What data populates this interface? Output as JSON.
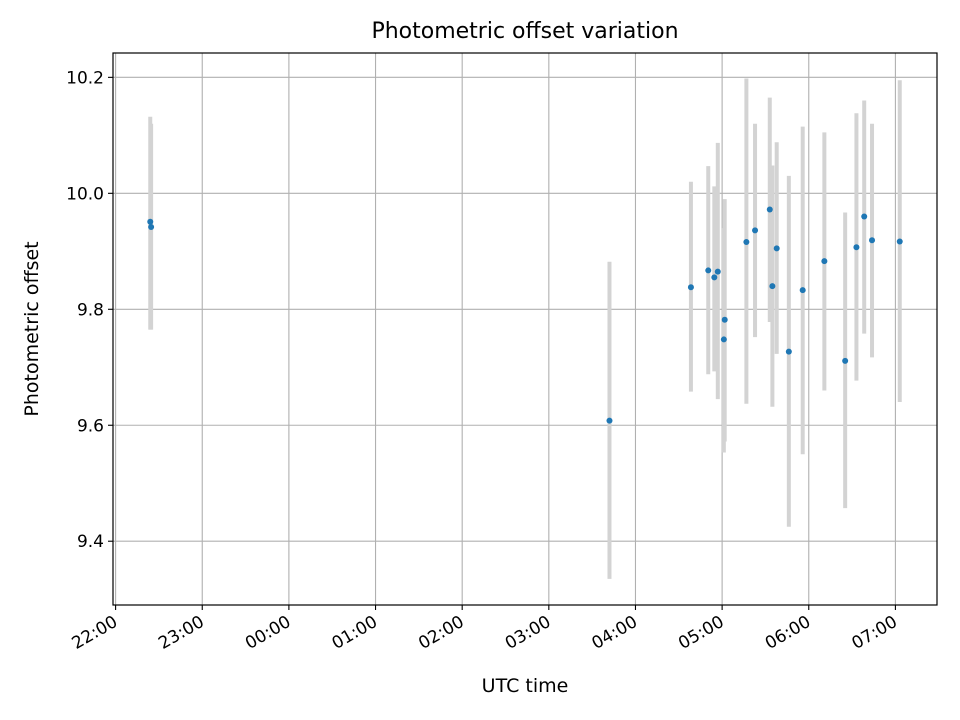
{
  "chart_data": {
    "type": "scatter",
    "title": "Photometric offset variation",
    "xlabel": "UTC time",
    "ylabel": "Photometric offset",
    "x_unit": "hours since 22:00 UTC",
    "xlim": [
      -0.03,
      9.48
    ],
    "ylim": [
      9.29,
      10.242
    ],
    "grid": true,
    "x_ticks": [
      {
        "value": 0,
        "label": "22:00"
      },
      {
        "value": 1,
        "label": "23:00"
      },
      {
        "value": 2,
        "label": "00:00"
      },
      {
        "value": 3,
        "label": "01:00"
      },
      {
        "value": 4,
        "label": "02:00"
      },
      {
        "value": 5,
        "label": "03:00"
      },
      {
        "value": 6,
        "label": "04:00"
      },
      {
        "value": 7,
        "label": "05:00"
      },
      {
        "value": 8,
        "label": "06:00"
      },
      {
        "value": 9,
        "label": "07:00"
      }
    ],
    "y_ticks": [
      {
        "value": 9.4,
        "label": "9.4"
      },
      {
        "value": 9.6,
        "label": "9.6"
      },
      {
        "value": 9.8,
        "label": "9.8"
      },
      {
        "value": 10.0,
        "label": "10.0"
      },
      {
        "value": 10.2,
        "label": "10.2"
      }
    ],
    "colors": {
      "point": "#1f77b4",
      "errorbar": "#d3d3d3",
      "grid": "#b0b0b0",
      "frame": "#000000"
    },
    "points": [
      {
        "x": 0.4,
        "y": 9.951,
        "err_low": 9.765,
        "err_high": 10.132
      },
      {
        "x": 0.41,
        "y": 9.942,
        "err_low": 9.765,
        "err_high": 10.12
      },
      {
        "x": 5.7,
        "y": 9.608,
        "err_low": 9.335,
        "err_high": 9.882
      },
      {
        "x": 6.64,
        "y": 9.838,
        "err_low": 9.658,
        "err_high": 10.02
      },
      {
        "x": 6.84,
        "y": 9.867,
        "err_low": 9.688,
        "err_high": 10.047
      },
      {
        "x": 6.91,
        "y": 9.855,
        "err_low": 9.693,
        "err_high": 10.012
      },
      {
        "x": 6.95,
        "y": 9.865,
        "err_low": 9.645,
        "err_high": 10.087
      },
      {
        "x": 7.02,
        "y": 9.748,
        "err_low": 9.553,
        "err_high": 9.94
      },
      {
        "x": 7.03,
        "y": 9.782,
        "err_low": 9.572,
        "err_high": 9.99
      },
      {
        "x": 7.28,
        "y": 9.916,
        "err_low": 9.637,
        "err_high": 10.198
      },
      {
        "x": 7.38,
        "y": 9.936,
        "err_low": 9.752,
        "err_high": 10.12
      },
      {
        "x": 7.55,
        "y": 9.972,
        "err_low": 9.778,
        "err_high": 10.165
      },
      {
        "x": 7.58,
        "y": 9.84,
        "err_low": 9.632,
        "err_high": 10.048
      },
      {
        "x": 7.63,
        "y": 9.905,
        "err_low": 9.723,
        "err_high": 10.088
      },
      {
        "x": 7.77,
        "y": 9.727,
        "err_low": 9.425,
        "err_high": 10.03
      },
      {
        "x": 7.93,
        "y": 9.833,
        "err_low": 9.55,
        "err_high": 10.115
      },
      {
        "x": 8.18,
        "y": 9.883,
        "err_low": 9.66,
        "err_high": 10.105
      },
      {
        "x": 8.42,
        "y": 9.711,
        "err_low": 9.457,
        "err_high": 9.967
      },
      {
        "x": 8.55,
        "y": 9.907,
        "err_low": 9.677,
        "err_high": 10.138
      },
      {
        "x": 8.64,
        "y": 9.96,
        "err_low": 9.758,
        "err_high": 10.16
      },
      {
        "x": 8.73,
        "y": 9.919,
        "err_low": 9.717,
        "err_high": 10.12
      },
      {
        "x": 9.05,
        "y": 9.917,
        "err_low": 9.64,
        "err_high": 10.195
      }
    ]
  }
}
